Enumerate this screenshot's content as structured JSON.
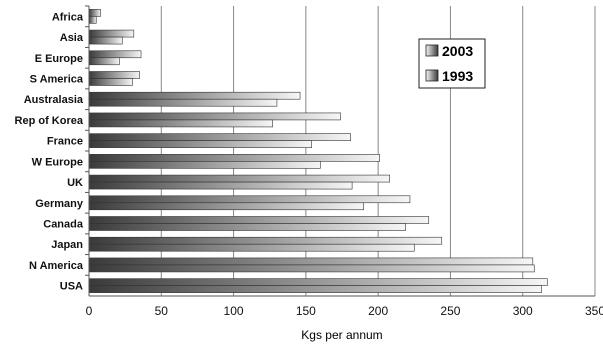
{
  "chart_data": {
    "type": "bar",
    "orientation": "horizontal",
    "grouped": true,
    "categories": [
      "Africa",
      "Asia",
      "E Europe",
      "S America",
      "Australasia",
      "Rep of Korea",
      "France",
      "W Europe",
      "UK",
      "Germany",
      "Canada",
      "Japan",
      "N America",
      "USA"
    ],
    "series": [
      {
        "name": "2003",
        "values": [
          8,
          31,
          36,
          35,
          146,
          174,
          181,
          201,
          208,
          222,
          235,
          244,
          307,
          317
        ]
      },
      {
        "name": "1993",
        "values": [
          5,
          23,
          21,
          30,
          130,
          127,
          154,
          160,
          182,
          190,
          219,
          225,
          308,
          313
        ]
      }
    ],
    "xlabel": "Kgs per annum",
    "ylabel": "",
    "xlim": [
      0,
      350
    ],
    "xticks": [
      0,
      50,
      100,
      150,
      200,
      250,
      300,
      350
    ],
    "grid": "vertical",
    "legend_position": "top-right"
  },
  "colors": {
    "bar_dark": "#3a3a3a",
    "bar_light": "#f6f6f6",
    "grid": "#888888",
    "axis": "#555555",
    "text": "#111111"
  }
}
